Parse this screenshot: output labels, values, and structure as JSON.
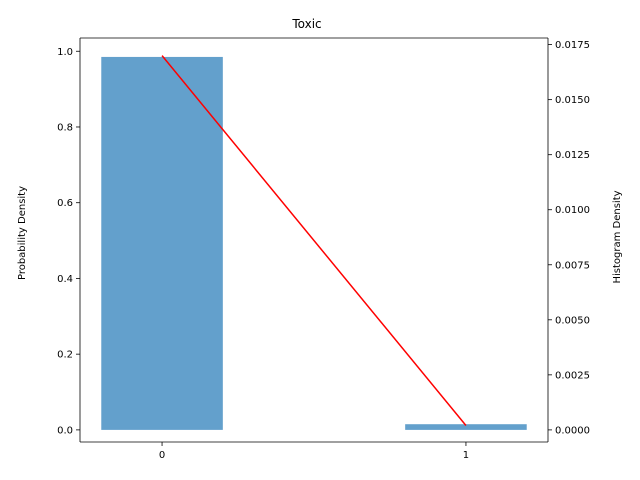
{
  "chart_data": {
    "type": "bar",
    "title": "Toxic",
    "xlabel": "",
    "ylabel": "Probability Density",
    "y2label": "Histogram Density",
    "categories": [
      "0",
      "1"
    ],
    "x": [
      0,
      1
    ],
    "bar_series": {
      "axis": "left",
      "values": [
        0.985,
        0.015
      ],
      "color": "#5b9bc9"
    },
    "line_series": {
      "axis": "right",
      "x": [
        0,
        1
      ],
      "values": [
        0.017,
        0.0002
      ],
      "color": "#ff0000"
    },
    "ylim": [
      -0.032,
      1.035
    ],
    "y2lim": [
      -0.00055,
      0.0178
    ],
    "xlim": [
      -0.27,
      1.27
    ],
    "yticks": [
      0.0,
      0.2,
      0.4,
      0.6,
      0.8,
      1.0
    ],
    "ytick_labels": [
      "0.0",
      "0.2",
      "0.4",
      "0.6",
      "0.8",
      "1.0"
    ],
    "y2ticks": [
      0.0,
      0.0025,
      0.005,
      0.0075,
      0.01,
      0.0125,
      0.015,
      0.0175
    ],
    "y2tick_labels": [
      "0.0000",
      "0.0025",
      "0.0050",
      "0.0075",
      "0.0100",
      "0.0125",
      "0.0150",
      "0.0175"
    ],
    "xticks": [
      0,
      1
    ],
    "xtick_labels": [
      "0",
      "1"
    ],
    "grid": false
  }
}
